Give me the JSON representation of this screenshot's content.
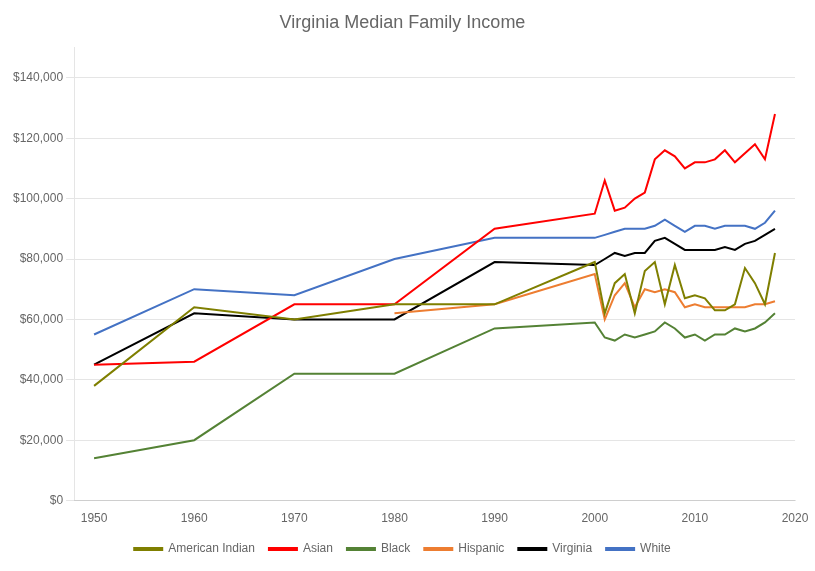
{
  "chart_data": {
    "type": "line",
    "title": "Virginia Median Family Income",
    "x": [
      1950,
      1960,
      1970,
      1980,
      1990,
      2000,
      2001,
      2002,
      2003,
      2004,
      2005,
      2006,
      2007,
      2008,
      2009,
      2010,
      2011,
      2012,
      2013,
      2014,
      2015,
      2016,
      2017,
      2018
    ],
    "series": [
      {
        "name": "American Indian",
        "color": "#7f7f00",
        "values": [
          38000,
          64000,
          60000,
          65000,
          65000,
          79000,
          62000,
          72000,
          75000,
          62000,
          76000,
          79000,
          65000,
          78000,
          67000,
          68000,
          67000,
          63000,
          63000,
          65000,
          77000,
          72000,
          65000,
          82000
        ]
      },
      {
        "name": "Asian",
        "color": "#ff0000",
        "values": [
          45000,
          46000,
          65000,
          65000,
          90000,
          95000,
          106000,
          96000,
          97000,
          100000,
          102000,
          113000,
          116000,
          114000,
          110000,
          112000,
          112000,
          113000,
          116000,
          112000,
          115000,
          118000,
          113000,
          128000
        ]
      },
      {
        "name": "Black",
        "color": "#548235",
        "values": [
          14000,
          20000,
          42000,
          42000,
          57000,
          59000,
          54000,
          53000,
          55000,
          54000,
          55000,
          56000,
          59000,
          57000,
          54000,
          55000,
          53000,
          55000,
          55000,
          57000,
          56000,
          57000,
          59000,
          62000
        ]
      },
      {
        "name": "Hispanic",
        "color": "#ed7d31",
        "values": [
          null,
          null,
          null,
          62000,
          65000,
          75000,
          60000,
          68000,
          72000,
          64000,
          70000,
          69000,
          70000,
          69000,
          64000,
          65000,
          64000,
          64000,
          64000,
          64000,
          64000,
          65000,
          65000,
          66000
        ]
      },
      {
        "name": "Virginia",
        "color": "#000000",
        "values": [
          45000,
          62000,
          60000,
          60000,
          79000,
          78000,
          80000,
          82000,
          81000,
          82000,
          82000,
          86000,
          87000,
          85000,
          83000,
          83000,
          83000,
          83000,
          84000,
          83000,
          85000,
          86000,
          88000,
          90000
        ]
      },
      {
        "name": "White",
        "color": "#4472c4",
        "values": [
          55000,
          70000,
          68000,
          80000,
          87000,
          87000,
          88000,
          89000,
          90000,
          90000,
          90000,
          91000,
          93000,
          91000,
          89000,
          91000,
          91000,
          90000,
          91000,
          91000,
          91000,
          90000,
          92000,
          96000
        ]
      }
    ],
    "xlim": [
      1948,
      2020
    ],
    "ylim": [
      0,
      150000
    ],
    "xticks": [
      1950,
      1960,
      1970,
      1980,
      1990,
      2000,
      2010,
      2020
    ],
    "yticks": [
      {
        "value": 0,
        "label": "$0"
      },
      {
        "value": 20000,
        "label": "$20,000"
      },
      {
        "value": 40000,
        "label": "$40,000"
      },
      {
        "value": 60000,
        "label": "$60,000"
      },
      {
        "value": 80000,
        "label": "$80,000"
      },
      {
        "value": 100000,
        "label": "$100,000"
      },
      {
        "value": 120000,
        "label": "$120,000"
      },
      {
        "value": 140000,
        "label": "$140,000"
      }
    ],
    "grid": "y",
    "legend": "bottom"
  }
}
